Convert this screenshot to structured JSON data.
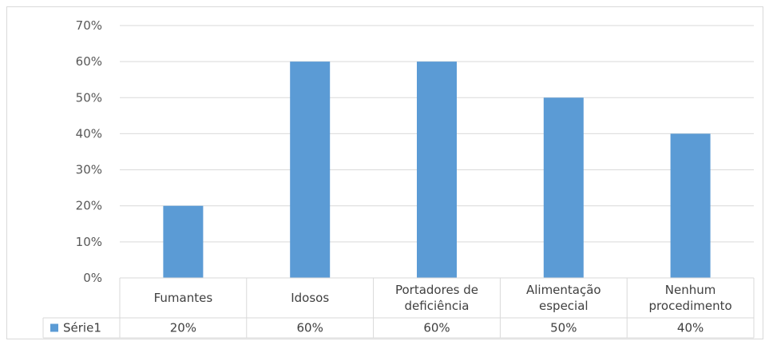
{
  "chart_data": {
    "type": "bar",
    "categories": [
      "Fumantes",
      "Idosos",
      "Portadores de deficiência",
      "Alimentação especial",
      "Nenhum procedimento"
    ],
    "category_lines": [
      [
        "Fumantes"
      ],
      [
        "Idosos"
      ],
      [
        "Portadores de",
        "deficiência"
      ],
      [
        "Alimentação",
        "especial"
      ],
      [
        "Nenhum",
        "procedimento"
      ]
    ],
    "series": [
      {
        "name": "Série1",
        "values": [
          20,
          60,
          60,
          50,
          40
        ],
        "value_labels": [
          "20%",
          "60%",
          "60%",
          "50%",
          "40%"
        ]
      }
    ],
    "y_ticks": [
      "0%",
      "10%",
      "20%",
      "30%",
      "40%",
      "50%",
      "60%",
      "70%"
    ],
    "ylim": [
      0,
      70
    ],
    "grid": true,
    "legend": "data-table-left",
    "colors": {
      "bar": "#5b9bd5",
      "grid": "#d9d9d9",
      "text": "#595959"
    }
  }
}
